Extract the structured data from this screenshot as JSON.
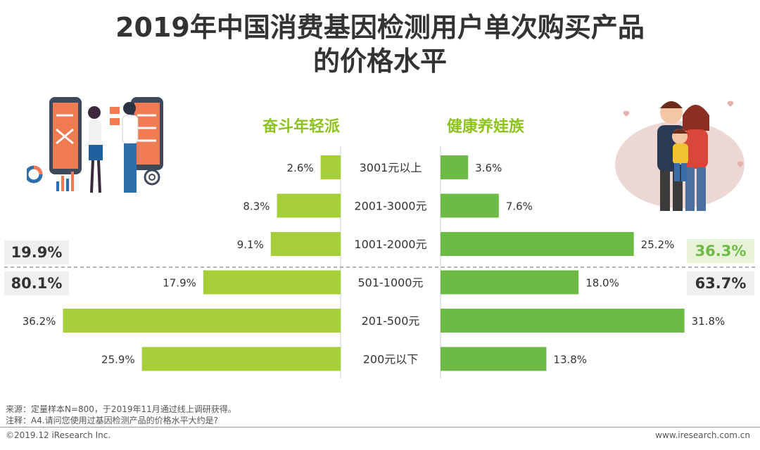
{
  "title_line1": "2019年中国消费基因检测用户单次购买产品",
  "title_line2": "的价格水平",
  "left_group_label": "奋斗年轻派",
  "right_group_label": "健康养娃族",
  "summary": {
    "left_top": "19.9%",
    "left_bottom": "80.1%",
    "right_top": "36.3%",
    "right_bottom": "63.7%"
  },
  "footer": {
    "source": "来源：定量样本N=800，于2019年11月通过线上调研获得。",
    "note": "注释：A4.请问您使用过基因检测产品的价格水平大约是?",
    "copyright": "©2019.12 iResearch Inc.",
    "website": "www.iresearch.com.cn"
  },
  "colors": {
    "bar_green": "#a6ce39",
    "bar_green_right": "#6dbb45",
    "label_green": "#8dc21f",
    "summary_bg": "#efefef",
    "summary_highlight_bg": "#e7f2d6"
  },
  "chart_data": {
    "type": "bar",
    "orientation": "horizontal-butterfly",
    "categories": [
      "3001元以上",
      "2001-3000元",
      "1001-2000元",
      "501-1000元",
      "201-500元",
      "200元以下"
    ],
    "series": [
      {
        "name": "奋斗年轻派",
        "values": [
          2.6,
          8.3,
          9.1,
          17.9,
          36.2,
          25.9
        ],
        "labels": [
          "2.6%",
          "8.3%",
          "9.1%",
          "17.9%",
          "36.2%",
          "25.9%"
        ]
      },
      {
        "name": "健康养娃族",
        "values": [
          3.6,
          7.6,
          25.2,
          18.0,
          31.8,
          13.8
        ],
        "labels": [
          "3.6%",
          "7.6%",
          "25.2%",
          "18.0%",
          "31.8%",
          "13.8%"
        ]
      }
    ],
    "unit": "%",
    "xlim": [
      0,
      40
    ]
  }
}
